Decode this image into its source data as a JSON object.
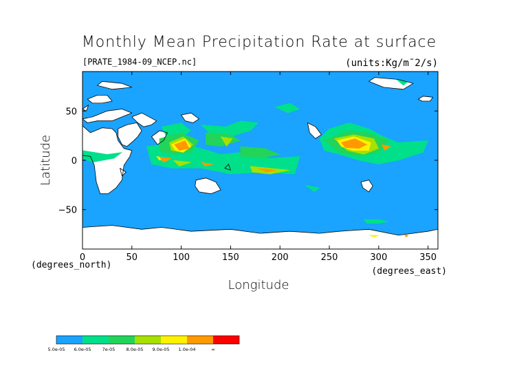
{
  "chart_data": {
    "type": "heatmap",
    "title": "Monthly Mean Precipitation Rate at surface",
    "file_label": "[PRATE_1984-09_NCEP.nc]",
    "units_label": "(units:Kg/m¯2/s)",
    "xlabel": "Longitude",
    "ylabel": "Latitude",
    "x_units": "(degrees_east)",
    "y_units": "(degrees_north)",
    "xlim": [
      0,
      360
    ],
    "ylim": [
      -90,
      90
    ],
    "x_ticks": [
      "0",
      "50",
      "100",
      "150",
      "200",
      "250",
      "300",
      "350"
    ],
    "x_tick_values": [
      0,
      50,
      100,
      150,
      200,
      250,
      300,
      350
    ],
    "y_ticks": [
      "50",
      "0",
      "−50"
    ],
    "y_tick_values": [
      50,
      0,
      -50
    ],
    "colorbar": {
      "labels": [
        "5.0e-05",
        "6.0e-05",
        "7e-05",
        "8.0e-05",
        "9.0e-05",
        "1.0e-04",
        "∞"
      ],
      "colors": [
        "#1aa3ff",
        "#00e08a",
        "#22d45a",
        "#a8e000",
        "#fff200",
        "#ff9900",
        "#ff0000"
      ]
    },
    "below_range_color": "#ffffff",
    "regions": [
      {
        "level": 0,
        "points": [
          [
            0,
            90
          ],
          [
            360,
            90
          ],
          [
            360,
            -90
          ],
          [
            0,
            -90
          ]
        ]
      },
      {
        "level": -1,
        "points": [
          [
            8,
            28
          ],
          [
            20,
            33
          ],
          [
            30,
            32
          ],
          [
            34,
            28
          ],
          [
            36,
            20
          ],
          [
            42,
            12
          ],
          [
            50,
            10
          ],
          [
            48,
            4
          ],
          [
            42,
            -5
          ],
          [
            40,
            -20
          ],
          [
            34,
            -28
          ],
          [
            26,
            -34
          ],
          [
            18,
            -34
          ],
          [
            14,
            -22
          ],
          [
            12,
            -5
          ],
          [
            8,
            4
          ],
          [
            0,
            5
          ],
          [
            -8,
            5
          ],
          [
            -17,
            14
          ],
          [
            -16,
            22
          ],
          [
            -10,
            30
          ],
          [
            0,
            35
          ]
        ]
      },
      {
        "level": -1,
        "points": [
          [
            36,
            32
          ],
          [
            45,
            36
          ],
          [
            55,
            38
          ],
          [
            60,
            30
          ],
          [
            56,
            24
          ],
          [
            52,
            20
          ],
          [
            45,
            14
          ],
          [
            40,
            16
          ],
          [
            36,
            24
          ]
        ]
      },
      {
        "level": -1,
        "points": [
          [
            60,
            48
          ],
          [
            75,
            40
          ],
          [
            70,
            36
          ],
          [
            62,
            34
          ],
          [
            56,
            38
          ],
          [
            50,
            44
          ]
        ]
      },
      {
        "level": -1,
        "points": [
          [
            0,
            42
          ],
          [
            10,
            44
          ],
          [
            25,
            50
          ],
          [
            40,
            52
          ],
          [
            50,
            48
          ],
          [
            40,
            44
          ],
          [
            30,
            40
          ],
          [
            15,
            40
          ],
          [
            5,
            38
          ]
        ]
      },
      {
        "level": -1,
        "points": [
          [
            5,
            62
          ],
          [
            15,
            66
          ],
          [
            25,
            66
          ],
          [
            30,
            60
          ],
          [
            20,
            58
          ],
          [
            10,
            58
          ]
        ]
      },
      {
        "level": -1,
        "points": [
          [
            70,
            24
          ],
          [
            78,
            30
          ],
          [
            86,
            28
          ],
          [
            82,
            20
          ],
          [
            76,
            16
          ]
        ]
      },
      {
        "level": -1,
        "points": [
          [
            100,
            46
          ],
          [
            110,
            48
          ],
          [
            118,
            42
          ],
          [
            112,
            38
          ],
          [
            104,
            40
          ]
        ]
      },
      {
        "level": -1,
        "points": [
          [
            115,
            -20
          ],
          [
            125,
            -18
          ],
          [
            135,
            -22
          ],
          [
            140,
            -30
          ],
          [
            130,
            -34
          ],
          [
            118,
            -32
          ],
          [
            114,
            -26
          ]
        ]
      },
      {
        "level": -1,
        "points": [
          [
            228,
            38
          ],
          [
            236,
            34
          ],
          [
            242,
            26
          ],
          [
            236,
            22
          ],
          [
            230,
            28
          ]
        ]
      },
      {
        "level": -1,
        "points": [
          [
            340,
            62
          ],
          [
            345,
            65
          ],
          [
            355,
            64
          ],
          [
            352,
            60
          ],
          [
            344,
            60
          ]
        ]
      },
      {
        "level": -1,
        "points": [
          [
            282,
            -22
          ],
          [
            290,
            -20
          ],
          [
            294,
            -26
          ],
          [
            290,
            -32
          ],
          [
            284,
            -28
          ]
        ]
      },
      {
        "level": -1,
        "points": [
          [
            0,
            -68
          ],
          [
            30,
            -66
          ],
          [
            60,
            -70
          ],
          [
            80,
            -68
          ],
          [
            110,
            -72
          ],
          [
            150,
            -70
          ],
          [
            180,
            -74
          ],
          [
            210,
            -72
          ],
          [
            240,
            -74
          ],
          [
            260,
            -72
          ],
          [
            290,
            -70
          ],
          [
            320,
            -76
          ],
          [
            350,
            -72
          ],
          [
            360,
            -70
          ],
          [
            360,
            -90
          ],
          [
            0,
            -90
          ]
        ]
      },
      {
        "level": -1,
        "points": [
          [
            296,
            84
          ],
          [
            320,
            82
          ],
          [
            335,
            78
          ],
          [
            325,
            72
          ],
          [
            305,
            74
          ],
          [
            290,
            80
          ]
        ]
      },
      {
        "level": -1,
        "points": [
          [
            20,
            80
          ],
          [
            40,
            78
          ],
          [
            50,
            74
          ],
          [
            30,
            72
          ],
          [
            15,
            76
          ]
        ]
      },
      {
        "level": -1,
        "points": [
          [
            0,
            52
          ],
          [
            6,
            56
          ],
          [
            4,
            50
          ]
        ]
      },
      {
        "level": -1,
        "points": [
          [
            144,
            -8
          ],
          [
            150,
            -10
          ],
          [
            148,
            -4
          ]
        ]
      },
      {
        "level": -1,
        "points": [
          [
            38,
            -8
          ],
          [
            44,
            -12
          ],
          [
            40,
            -16
          ]
        ]
      },
      {
        "level": 1,
        "points": [
          [
            0,
            10
          ],
          [
            25,
            6
          ],
          [
            40,
            8
          ],
          [
            32,
            2
          ],
          [
            10,
            -2
          ],
          [
            0,
            2
          ]
        ]
      },
      {
        "level": 1,
        "points": [
          [
            65,
            14
          ],
          [
            95,
            18
          ],
          [
            120,
            12
          ],
          [
            140,
            6
          ],
          [
            160,
            8
          ],
          [
            190,
            2
          ],
          [
            220,
            4
          ],
          [
            215,
            -14
          ],
          [
            180,
            -12
          ],
          [
            150,
            -14
          ],
          [
            120,
            -8
          ],
          [
            90,
            -8
          ],
          [
            70,
            -4
          ]
        ]
      },
      {
        "level": 1,
        "points": [
          [
            80,
            34
          ],
          [
            100,
            38
          ],
          [
            110,
            30
          ],
          [
            100,
            24
          ],
          [
            85,
            24
          ]
        ]
      },
      {
        "level": 1,
        "points": [
          [
            120,
            36
          ],
          [
            145,
            34
          ],
          [
            160,
            40
          ],
          [
            178,
            38
          ],
          [
            170,
            30
          ],
          [
            150,
            24
          ],
          [
            130,
            26
          ]
        ]
      },
      {
        "level": 1,
        "points": [
          [
            195,
            54
          ],
          [
            210,
            58
          ],
          [
            220,
            52
          ],
          [
            208,
            48
          ]
        ]
      },
      {
        "level": 1,
        "points": [
          [
            240,
            22
          ],
          [
            250,
            32
          ],
          [
            270,
            38
          ],
          [
            290,
            32
          ],
          [
            305,
            24
          ],
          [
            320,
            18
          ],
          [
            350,
            20
          ],
          [
            345,
            8
          ],
          [
            320,
            0
          ],
          [
            300,
            -4
          ],
          [
            280,
            0
          ],
          [
            260,
            6
          ],
          [
            245,
            10
          ]
        ]
      },
      {
        "level": 1,
        "points": [
          [
            285,
            -60
          ],
          [
            300,
            -60
          ],
          [
            310,
            -62
          ],
          [
            300,
            -64
          ],
          [
            288,
            -64
          ]
        ]
      },
      {
        "level": 1,
        "points": [
          [
            318,
            82
          ],
          [
            330,
            80
          ],
          [
            325,
            76
          ]
        ]
      },
      {
        "level": 1,
        "points": [
          [
            225,
            -25
          ],
          [
            240,
            -28
          ],
          [
            235,
            -32
          ]
        ]
      },
      {
        "level": 2,
        "points": [
          [
            78,
            22
          ],
          [
            100,
            28
          ],
          [
            118,
            20
          ],
          [
            110,
            8
          ],
          [
            90,
            6
          ],
          [
            78,
            10
          ]
        ]
      },
      {
        "level": 2,
        "points": [
          [
            125,
            28
          ],
          [
            150,
            26
          ],
          [
            160,
            20
          ],
          [
            140,
            14
          ],
          [
            125,
            16
          ]
        ]
      },
      {
        "level": 2,
        "points": [
          [
            160,
            14
          ],
          [
            185,
            12
          ],
          [
            200,
            6
          ],
          [
            180,
            2
          ],
          [
            160,
            4
          ]
        ]
      },
      {
        "level": 2,
        "points": [
          [
            245,
            20
          ],
          [
            268,
            30
          ],
          [
            290,
            28
          ],
          [
            310,
            20
          ],
          [
            300,
            8
          ],
          [
            280,
            4
          ],
          [
            260,
            8
          ]
        ]
      },
      {
        "level": 3,
        "points": [
          [
            88,
            18
          ],
          [
            102,
            24
          ],
          [
            112,
            16
          ],
          [
            102,
            8
          ],
          [
            90,
            10
          ]
        ]
      },
      {
        "level": 3,
        "points": [
          [
            140,
            24
          ],
          [
            152,
            22
          ],
          [
            146,
            14
          ]
        ]
      },
      {
        "level": 3,
        "points": [
          [
            255,
            22
          ],
          [
            275,
            26
          ],
          [
            295,
            22
          ],
          [
            300,
            12
          ],
          [
            285,
            6
          ],
          [
            268,
            10
          ]
        ]
      },
      {
        "level": 3,
        "points": [
          [
            170,
            -6
          ],
          [
            190,
            -8
          ],
          [
            210,
            -10
          ],
          [
            190,
            -14
          ],
          [
            172,
            -12
          ]
        ]
      },
      {
        "level": 3,
        "points": [
          [
            92,
            0
          ],
          [
            110,
            -2
          ],
          [
            98,
            -6
          ]
        ]
      },
      {
        "level": 4,
        "points": [
          [
            90,
            16
          ],
          [
            104,
            22
          ],
          [
            110,
            14
          ],
          [
            102,
            8
          ],
          [
            94,
            10
          ]
        ]
      },
      {
        "level": 4,
        "points": [
          [
            258,
            20
          ],
          [
            275,
            24
          ],
          [
            292,
            18
          ],
          [
            290,
            10
          ],
          [
            274,
            10
          ],
          [
            262,
            14
          ]
        ]
      },
      {
        "level": 4,
        "points": [
          [
            75,
            4
          ],
          [
            85,
            2
          ],
          [
            78,
            0
          ]
        ]
      },
      {
        "level": 4,
        "points": [
          [
            290,
            -76
          ],
          [
            300,
            -76
          ],
          [
            296,
            -78
          ]
        ]
      },
      {
        "level": 5,
        "points": [
          [
            93,
            16
          ],
          [
            104,
            20
          ],
          [
            108,
            12
          ],
          [
            98,
            10
          ]
        ]
      },
      {
        "level": 5,
        "points": [
          [
            262,
            18
          ],
          [
            276,
            22
          ],
          [
            288,
            16
          ],
          [
            280,
            12
          ],
          [
            266,
            13
          ]
        ]
      },
      {
        "level": 5,
        "points": [
          [
            78,
            3
          ],
          [
            90,
            2
          ],
          [
            82,
            -2
          ]
        ]
      },
      {
        "level": 5,
        "points": [
          [
            120,
            -2
          ],
          [
            132,
            -4
          ],
          [
            124,
            -6
          ]
        ]
      },
      {
        "level": 5,
        "points": [
          [
            178,
            -8
          ],
          [
            196,
            -10
          ],
          [
            186,
            -12
          ]
        ]
      },
      {
        "level": 5,
        "points": [
          [
            303,
            16
          ],
          [
            312,
            14
          ],
          [
            306,
            10
          ]
        ]
      },
      {
        "level": 5,
        "points": [
          [
            326,
            -76
          ],
          [
            330,
            -76
          ],
          [
            328,
            -78
          ]
        ]
      }
    ],
    "grid": false
  }
}
